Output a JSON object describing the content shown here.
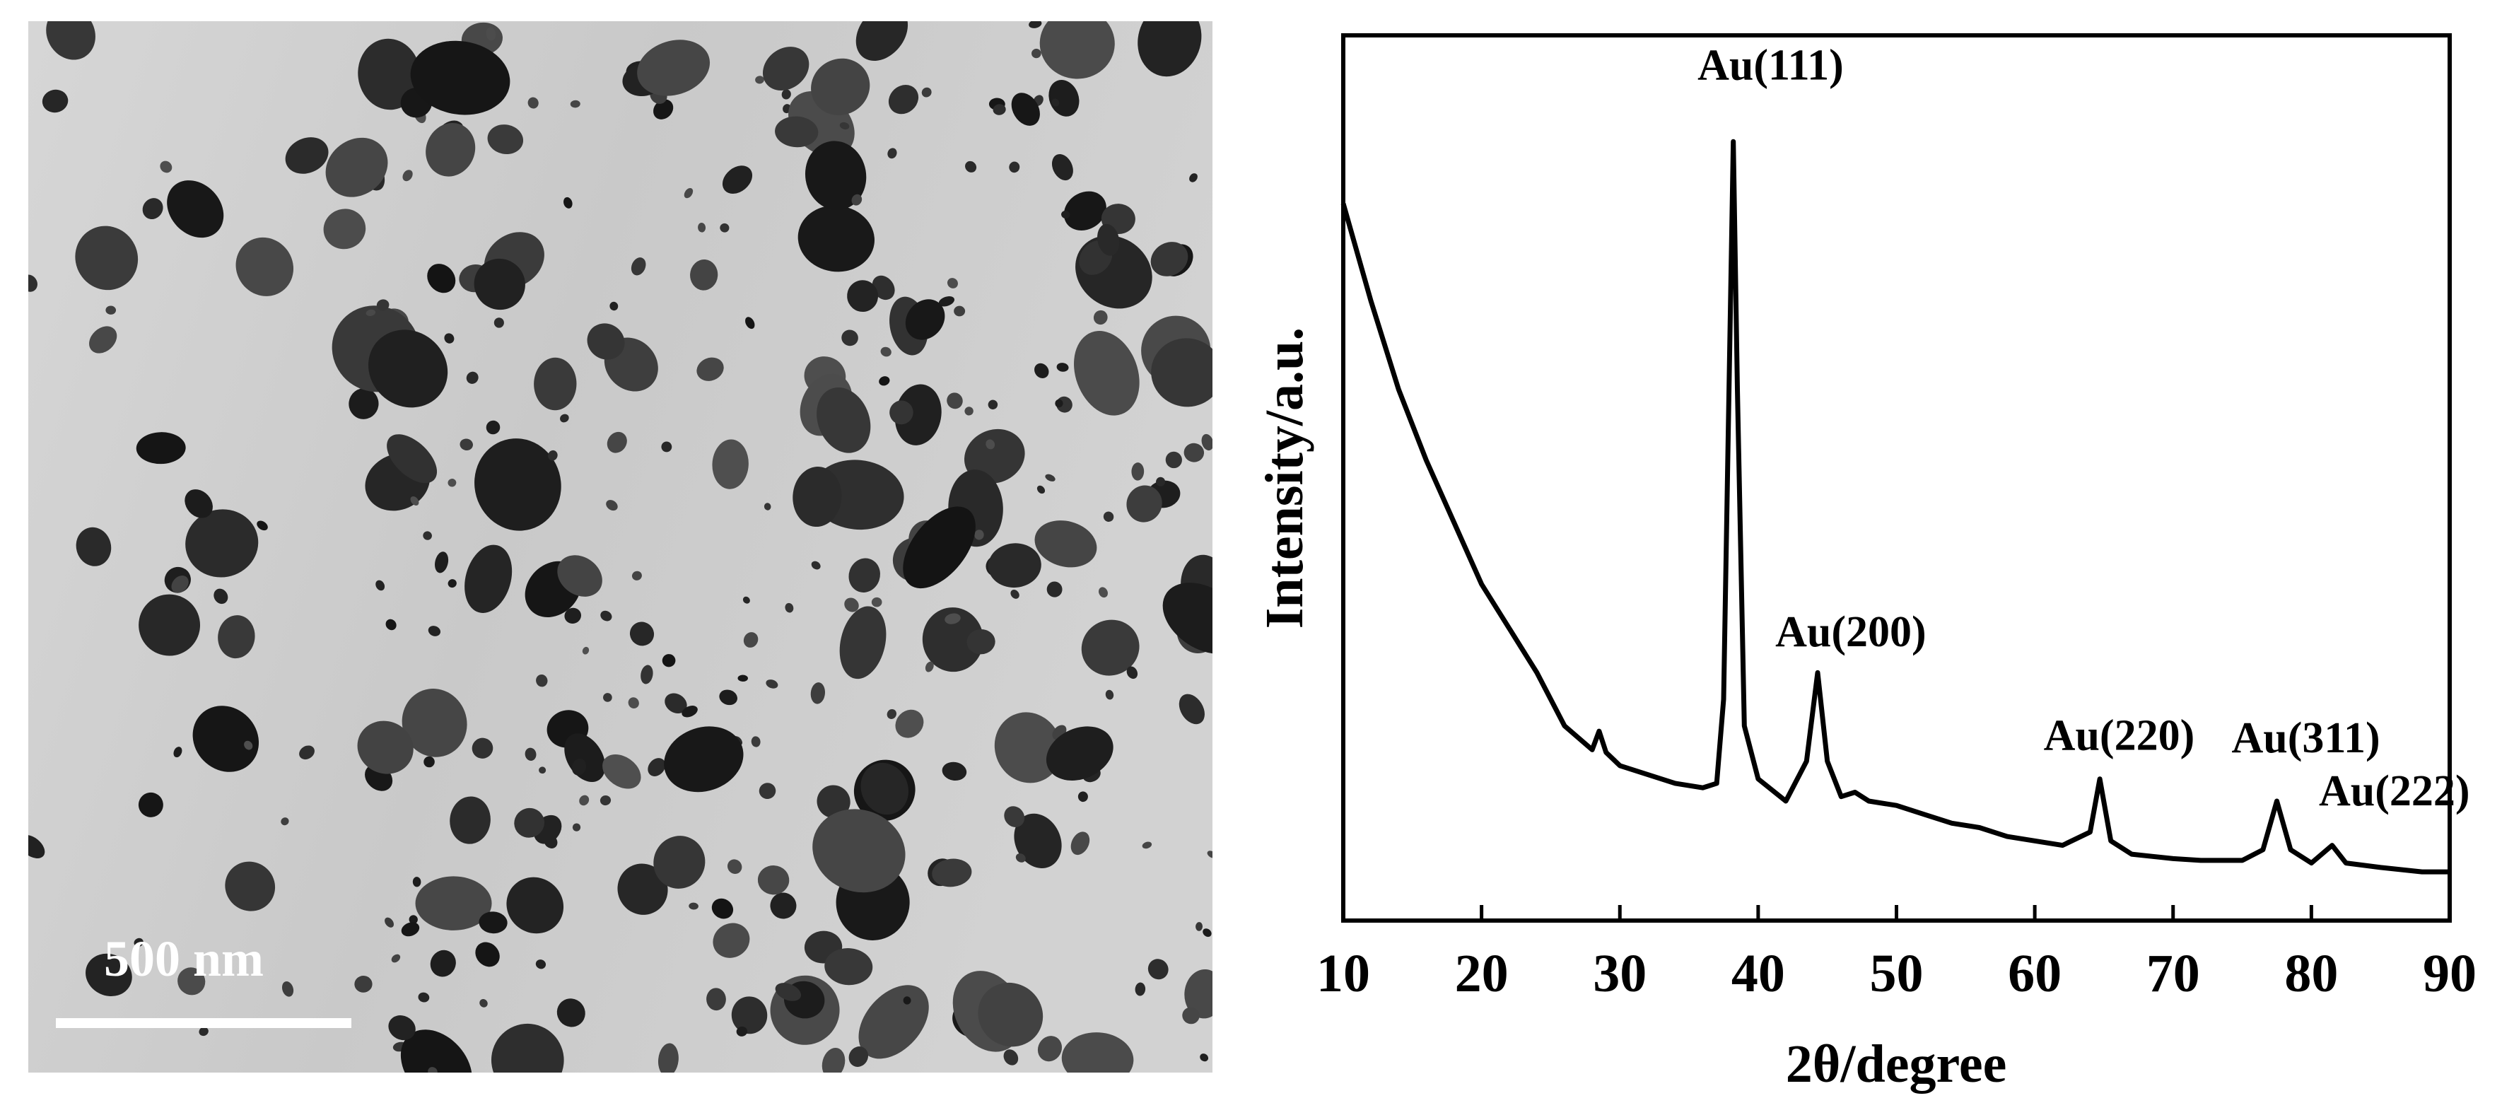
{
  "micrograph": {
    "scale_bar_label": "500 nm"
  },
  "chart_data": {
    "type": "line",
    "xlabel": "2θ/degree",
    "ylabel": "Intensity/a.u.",
    "xlim": [
      10,
      90
    ],
    "xticks": [
      10,
      20,
      30,
      40,
      50,
      60,
      70,
      80,
      90
    ],
    "ylim": [
      0,
      100
    ],
    "series": [
      {
        "color": "#000000",
        "x": [
          10,
          12,
          14,
          16,
          18,
          20,
          22,
          24,
          26,
          28,
          28.5,
          29,
          30,
          32,
          34,
          36,
          37,
          37.5,
          38,
          38.2,
          38.5,
          39,
          40,
          42,
          43.5,
          44.3,
          45,
          46,
          47,
          48,
          50,
          52,
          54,
          56,
          58,
          60,
          62,
          64,
          64.7,
          65.5,
          67,
          70,
          72,
          75,
          76.5,
          77.5,
          78.5,
          80,
          81.5,
          82.5,
          85,
          88,
          90
        ],
        "values": [
          81,
          70,
          60,
          52,
          45,
          38,
          33,
          28,
          22,
          19.3,
          21.4,
          19,
          17.5,
          16.5,
          15.5,
          15,
          15.5,
          25,
          70,
          88,
          60,
          22,
          16,
          13.5,
          18,
          28,
          18,
          14,
          14.5,
          13.5,
          13,
          12,
          11,
          10.5,
          9.5,
          9,
          8.5,
          10,
          16,
          9,
          7.5,
          7,
          6.8,
          6.8,
          8,
          13.5,
          8,
          6.5,
          8.5,
          6.5,
          6,
          5.5,
          5.5
        ]
      }
    ],
    "annotations": [
      {
        "text": "Au(111)",
        "x": 40.9,
        "y": 95
      },
      {
        "text": "Au(200)",
        "x": 46.7,
        "y": 31
      },
      {
        "text": "Au(220)",
        "x": 66.1,
        "y": 19.3
      },
      {
        "text": "Au(311)",
        "x": 79.6,
        "y": 19
      },
      {
        "text": "Au(222)",
        "x": 86,
        "y": 13
      }
    ]
  }
}
